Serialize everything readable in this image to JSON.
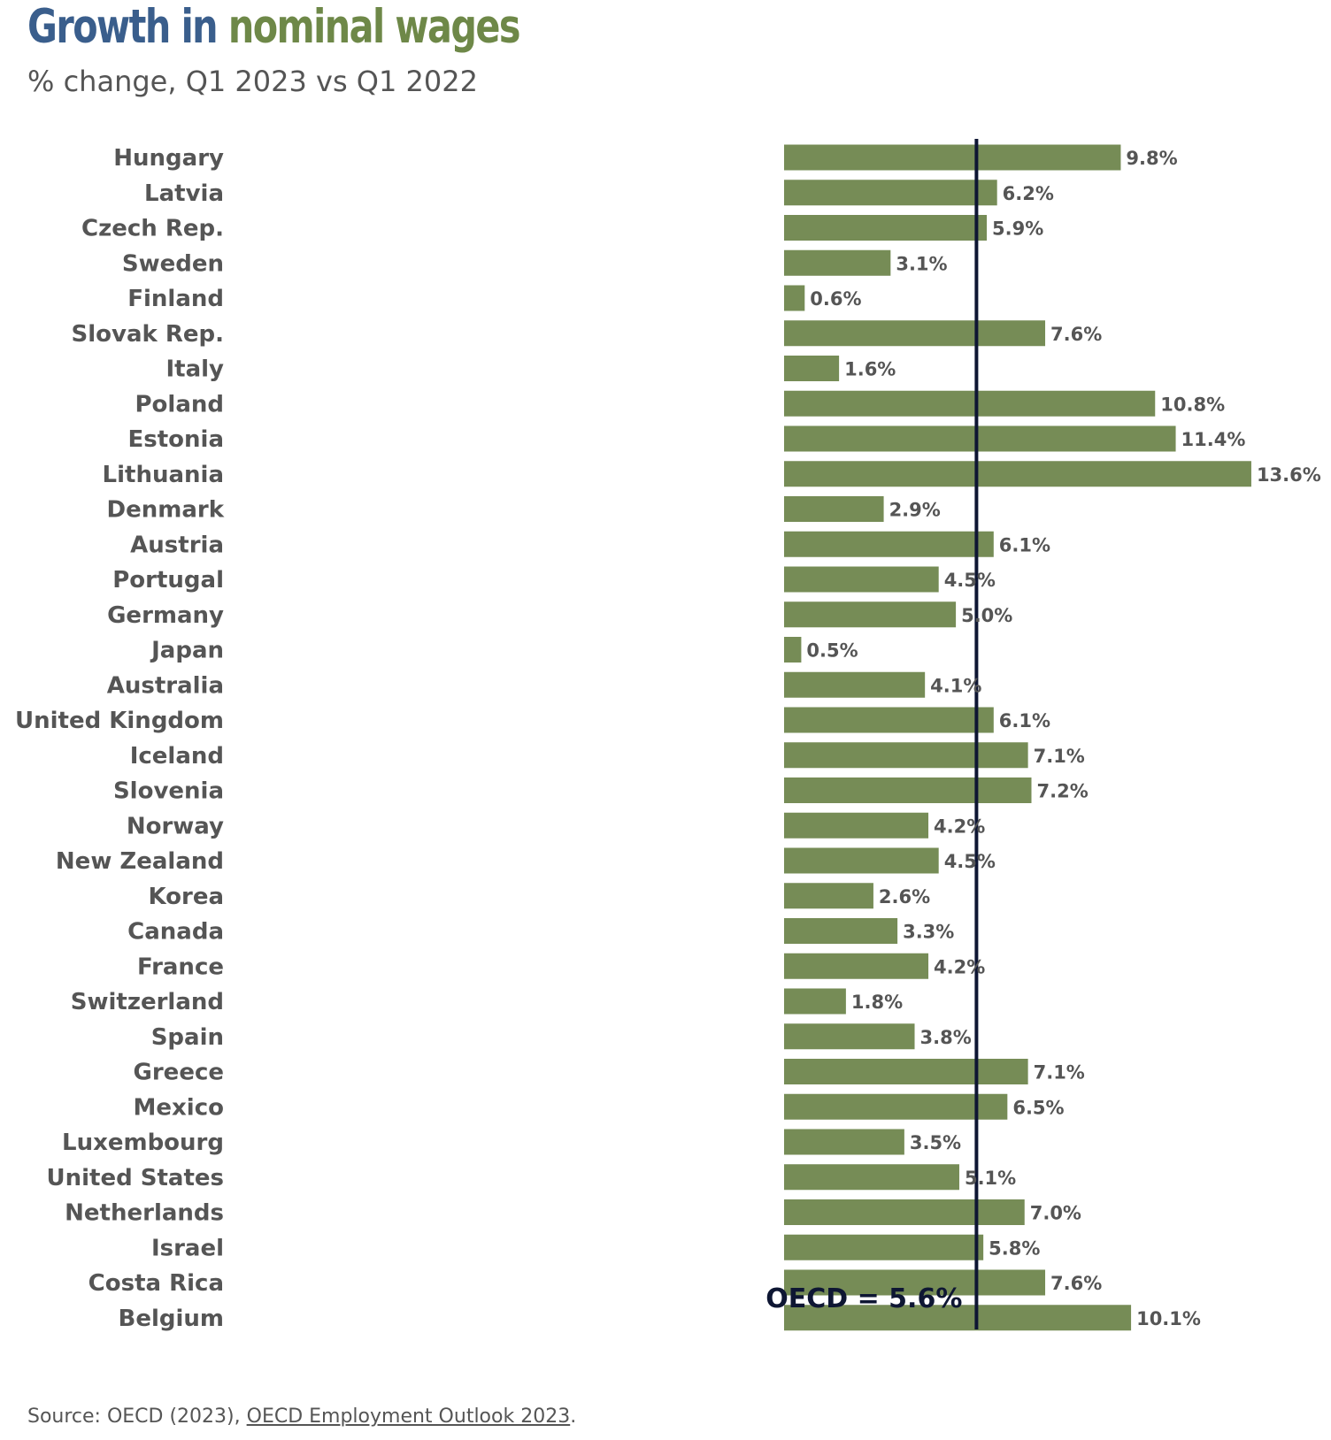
{
  "title": {
    "part1": "Growth in ",
    "part2": "nominal wages"
  },
  "subtitle": "% change, Q1 2023 vs Q1 2022",
  "source": {
    "prefix": "Source: OECD (2023), ",
    "link_text": "OECD Employment Outlook 2023",
    "suffix": "."
  },
  "colors": {
    "bar": "#768c56",
    "reference_line": "#0e1633",
    "title_part1": "#3a5e8c",
    "title_part2": "#6e8848",
    "text": "#555555"
  },
  "chart_data": {
    "type": "bar",
    "orientation": "horizontal",
    "title": "Growth in nominal wages",
    "subtitle": "% change, Q1 2023 vs Q1 2022",
    "xlabel": "",
    "ylabel": "",
    "xlim": [
      0,
      14
    ],
    "grid": false,
    "value_format": "{v}%",
    "categories": [
      "Hungary",
      "Latvia",
      "Czech Rep.",
      "Sweden",
      "Finland",
      "Slovak Rep.",
      "Italy",
      "Poland",
      "Estonia",
      "Lithuania",
      "Denmark",
      "Austria",
      "Portugal",
      "Germany",
      "Japan",
      "Australia",
      "United Kingdom",
      "Iceland",
      "Slovenia",
      "Norway",
      "New Zealand",
      "Korea",
      "Canada",
      "France",
      "Switzerland",
      "Spain",
      "Greece",
      "Mexico",
      "Luxembourg",
      "United States",
      "Netherlands",
      "Israel",
      "Costa Rica",
      "Belgium"
    ],
    "values": [
      9.8,
      6.2,
      5.9,
      3.1,
      0.6,
      7.6,
      1.6,
      10.8,
      11.4,
      13.6,
      2.9,
      6.1,
      4.5,
      5.0,
      0.5,
      4.1,
      6.1,
      7.1,
      7.2,
      4.2,
      4.5,
      2.6,
      3.3,
      4.2,
      1.8,
      3.8,
      7.1,
      6.5,
      3.5,
      5.1,
      7.0,
      5.8,
      7.6,
      10.1
    ],
    "data_labels": [
      "9.8%",
      "6.2%",
      "5.9%",
      "3.1%",
      "0.6%",
      "7.6%",
      "1.6%",
      "10.8%",
      "11.4%",
      "13.6%",
      "2.9%",
      "6.1%",
      "4.5%",
      "5.0%",
      "0.5%",
      "4.1%",
      "6.1%",
      "7.1%",
      "7.2%",
      "4.2%",
      "4.5%",
      "2.6%",
      "3.3%",
      "4.2%",
      "1.8%",
      "3.8%",
      "7.1%",
      "6.5%",
      "3.5%",
      "5.1%",
      "7.0%",
      "5.8%",
      "7.6%",
      "10.1%"
    ],
    "reference_line": {
      "value": 5.6,
      "label": "OECD = 5.6%"
    }
  }
}
